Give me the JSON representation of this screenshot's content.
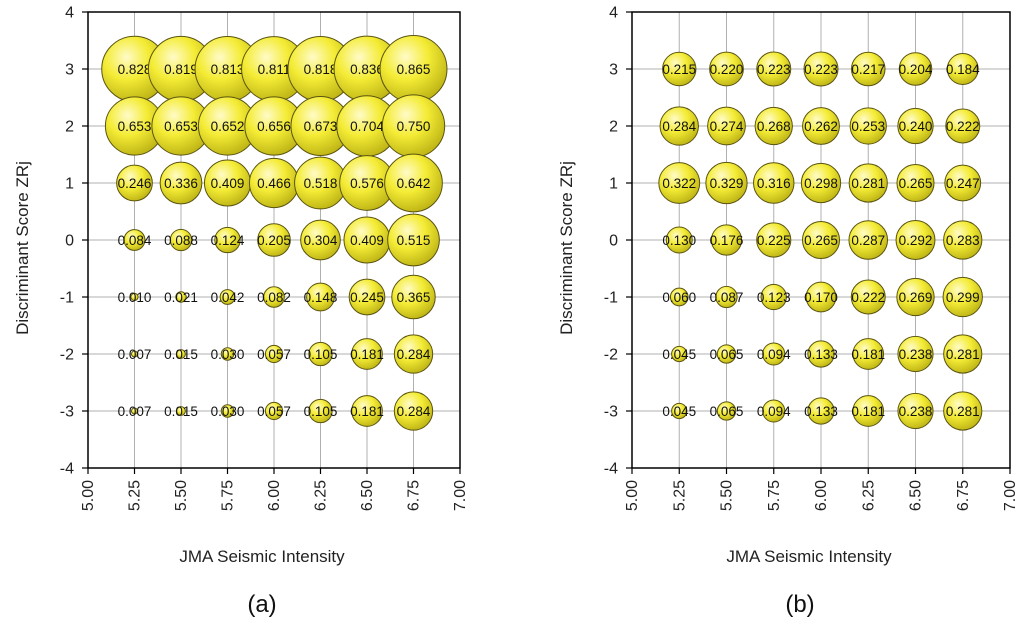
{
  "colors": {
    "bubble_fill": "#f2ea2e",
    "bubble_stroke": "#5a5410",
    "grid": "#b0b0b0",
    "axis": "#000000",
    "text": "#222222"
  },
  "chart_data": [
    {
      "type": "scatter",
      "panel_label": "(a)",
      "xlabel": "JMA Seismic Intensity",
      "ylabel": "Discriminant Score ZRj",
      "xlim": [
        5.0,
        7.0
      ],
      "ylim": [
        -4,
        4
      ],
      "x_ticks": [
        "5.00",
        "5.25",
        "5.50",
        "5.75",
        "6.00",
        "6.25",
        "6.50",
        "6.75",
        "7.00"
      ],
      "y_ticks": [
        "-4",
        "-3",
        "-2",
        "-1",
        "0",
        "1",
        "2",
        "3",
        "4"
      ],
      "grid": true,
      "x": [
        5.25,
        5.5,
        5.75,
        6.0,
        6.25,
        6.5,
        6.75
      ],
      "y": [
        3,
        2,
        1,
        0,
        -1,
        -2,
        -3
      ],
      "values": [
        [
          "0.828",
          "0.819",
          "0.813",
          "0.811",
          "0.818",
          "0.836",
          "0.865"
        ],
        [
          "0.653",
          "0.653",
          "0.652",
          "0.656",
          "0.673",
          "0.704",
          "0.750"
        ],
        [
          "0.246",
          "0.336",
          "0.409",
          "0.466",
          "0.518",
          "0.576",
          "0.642"
        ],
        [
          "0.084",
          "0.088",
          "0.124",
          "0.205",
          "0.304",
          "0.409",
          "0.515"
        ],
        [
          "0.010",
          "0.021",
          "0.042",
          "0.082",
          "0.148",
          "0.245",
          "0.365"
        ],
        [
          "0.007",
          "0.015",
          "0.030",
          "0.057",
          "0.105",
          "0.181",
          "0.284"
        ],
        [
          "0.007",
          "0.015",
          "0.030",
          "0.057",
          "0.105",
          "0.181",
          "0.284"
        ]
      ]
    },
    {
      "type": "scatter",
      "panel_label": "(b)",
      "xlabel": "JMA Seismic Intensity",
      "ylabel": "Discriminant Score ZRj",
      "xlim": [
        5.0,
        7.0
      ],
      "ylim": [
        -4,
        4
      ],
      "x_ticks": [
        "5.00",
        "5.25",
        "5.50",
        "5.75",
        "6.00",
        "6.25",
        "6.50",
        "6.75",
        "7.00"
      ],
      "y_ticks": [
        "-4",
        "-3",
        "-2",
        "-1",
        "0",
        "1",
        "2",
        "3",
        "4"
      ],
      "grid": true,
      "x": [
        5.25,
        5.5,
        5.75,
        6.0,
        6.25,
        6.5,
        6.75
      ],
      "y": [
        3,
        2,
        1,
        0,
        -1,
        -2,
        -3
      ],
      "values": [
        [
          "0.215",
          "0.220",
          "0.223",
          "0.223",
          "0.217",
          "0.204",
          "0.184"
        ],
        [
          "0.284",
          "0.274",
          "0.268",
          "0.262",
          "0.253",
          "0.240",
          "0.222"
        ],
        [
          "0.322",
          "0.329",
          "0.316",
          "0.298",
          "0.281",
          "0.265",
          "0.247"
        ],
        [
          "0.130",
          "0.176",
          "0.225",
          "0.265",
          "0.287",
          "0.292",
          "0.283"
        ],
        [
          "0.060",
          "0.087",
          "0.123",
          "0.170",
          "0.222",
          "0.269",
          "0.299"
        ],
        [
          "0.045",
          "0.065",
          "0.094",
          "0.133",
          "0.181",
          "0.238",
          "0.281"
        ],
        [
          "0.045",
          "0.065",
          "0.094",
          "0.133",
          "0.181",
          "0.238",
          "0.281"
        ]
      ]
    }
  ]
}
